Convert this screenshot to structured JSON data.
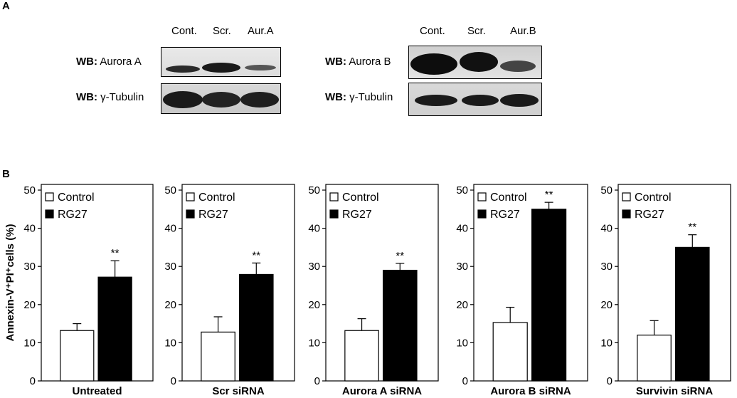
{
  "panel_a": {
    "letter": "A",
    "blot_left": {
      "lanes": [
        "Cont.",
        "Scr.",
        "Aur.A"
      ],
      "rows": [
        {
          "prefix": "WB:",
          "target": "Aurora A"
        },
        {
          "prefix": "WB:",
          "target": "γ-Tubulin"
        }
      ]
    },
    "blot_right": {
      "lanes": [
        "Cont.",
        "Scr.",
        "Aur.B"
      ],
      "rows": [
        {
          "prefix": "WB:",
          "target": "Aurora B"
        },
        {
          "prefix": "WB:",
          "target": "γ-Tubulin"
        }
      ]
    }
  },
  "panel_b": {
    "letter": "B"
  },
  "chart_data": [
    {
      "type": "bar",
      "xlabel": "Untreated",
      "ylabel": "Annexin-V⁺PI⁺cells (%)",
      "ylim": [
        0,
        50
      ],
      "yticks": [
        0,
        10,
        20,
        30,
        40,
        50
      ],
      "legend": "top-left",
      "series": [
        {
          "name": "Control",
          "value": 13.2,
          "error": 1.8,
          "color": "#ffffff"
        },
        {
          "name": "RG27",
          "value": 27.2,
          "error": 4.3,
          "color": "#000000",
          "annotation": "**"
        }
      ]
    },
    {
      "type": "bar",
      "xlabel": "Scr siRNA",
      "ylim": [
        0,
        50
      ],
      "yticks": [
        0,
        10,
        20,
        30,
        40,
        50
      ],
      "legend": "top-left",
      "series": [
        {
          "name": "Control",
          "value": 12.8,
          "error": 4.0,
          "color": "#ffffff"
        },
        {
          "name": "RG27",
          "value": 27.9,
          "error": 3.0,
          "color": "#000000",
          "annotation": "**"
        }
      ]
    },
    {
      "type": "bar",
      "xlabel": "Aurora A siRNA",
      "ylim": [
        0,
        50
      ],
      "yticks": [
        0,
        10,
        20,
        30,
        40,
        50
      ],
      "legend": "top-left",
      "series": [
        {
          "name": "Control",
          "value": 13.2,
          "error": 3.1,
          "color": "#ffffff"
        },
        {
          "name": "RG27",
          "value": 29.0,
          "error": 1.8,
          "color": "#000000",
          "annotation": "**"
        }
      ]
    },
    {
      "type": "bar",
      "xlabel": "Aurora B siRNA",
      "ylim": [
        0,
        50
      ],
      "yticks": [
        0,
        10,
        20,
        30,
        40,
        50
      ],
      "legend": "top-left",
      "series": [
        {
          "name": "Control",
          "value": 15.3,
          "error": 4.0,
          "color": "#ffffff"
        },
        {
          "name": "RG27",
          "value": 45.0,
          "error": 1.8,
          "color": "#000000",
          "annotation": "**"
        }
      ]
    },
    {
      "type": "bar",
      "xlabel": "Survivin siRNA",
      "ylim": [
        0,
        50
      ],
      "yticks": [
        0,
        10,
        20,
        30,
        40,
        50
      ],
      "legend": "top-left",
      "series": [
        {
          "name": "Control",
          "value": 12.0,
          "error": 3.8,
          "color": "#ffffff"
        },
        {
          "name": "RG27",
          "value": 35.0,
          "error": 3.3,
          "color": "#000000",
          "annotation": "**"
        }
      ]
    }
  ]
}
